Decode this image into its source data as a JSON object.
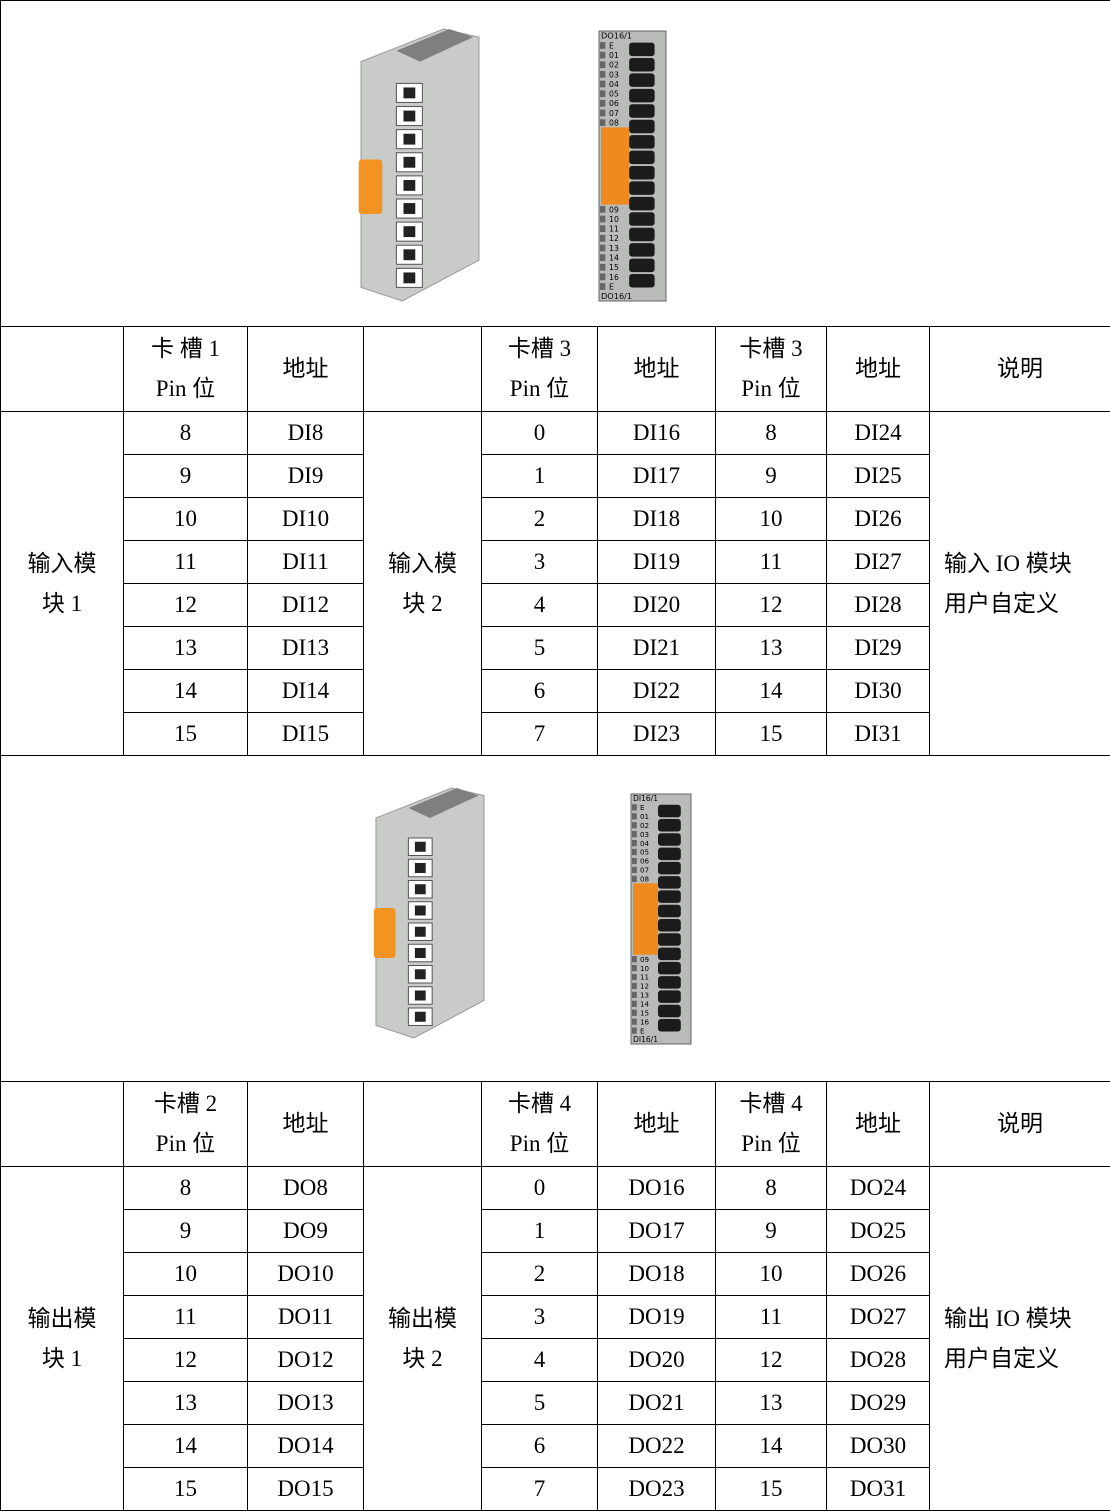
{
  "sections": [
    {
      "image": {
        "module_label": "DO16/1",
        "terminal_labels": [
          "E",
          "01",
          "02",
          "03",
          "04",
          "05",
          "06",
          "07",
          "08",
          "09",
          "10",
          "11",
          "12",
          "13",
          "14",
          "15",
          "16",
          "E"
        ]
      },
      "table": {
        "header": [
          [
            "卡 槽 1",
            "Pin 位"
          ],
          [
            "地址"
          ],
          [
            "卡槽 3",
            "Pin 位"
          ],
          [
            "地址"
          ],
          [
            "卡槽 3",
            "Pin 位"
          ],
          [
            "地址"
          ],
          [
            "说明"
          ]
        ],
        "module_1": [
          "输入模",
          "块 1"
        ],
        "module_2": [
          "输入模",
          "块 2"
        ],
        "note": [
          "输入 IO 模块",
          "用户自定义"
        ],
        "rows": [
          [
            8,
            "DI8",
            0,
            "DI16",
            8,
            "DI24"
          ],
          [
            9,
            "DI9",
            1,
            "DI17",
            9,
            "DI25"
          ],
          [
            10,
            "DI10",
            2,
            "DI18",
            10,
            "DI26"
          ],
          [
            11,
            "DI11",
            3,
            "DI19",
            11,
            "DI27"
          ],
          [
            12,
            "DI12",
            4,
            "DI20",
            12,
            "DI28"
          ],
          [
            13,
            "DI13",
            5,
            "DI21",
            13,
            "DI29"
          ],
          [
            14,
            "DI14",
            6,
            "DI22",
            14,
            "DI30"
          ],
          [
            15,
            "DI15",
            7,
            "DI23",
            15,
            "DI31"
          ]
        ]
      }
    },
    {
      "image": {
        "module_label": "DI16/1",
        "terminal_labels": [
          "E",
          "01",
          "02",
          "03",
          "04",
          "05",
          "06",
          "07",
          "08",
          "09",
          "10",
          "11",
          "12",
          "13",
          "14",
          "15",
          "16",
          "E"
        ]
      },
      "table": {
        "header": [
          [
            "卡槽 2",
            "Pin 位"
          ],
          [
            "地址"
          ],
          [
            "卡槽 4",
            "Pin 位"
          ],
          [
            "地址"
          ],
          [
            "卡槽 4",
            "Pin 位"
          ],
          [
            "地址"
          ],
          [
            "说明"
          ]
        ],
        "module_1": [
          "输出模",
          "块 1"
        ],
        "module_2": [
          "输出模",
          "块 2"
        ],
        "note": [
          "输出 IO 模块",
          "用户自定义"
        ],
        "rows": [
          [
            8,
            "DO8",
            0,
            "DO16",
            8,
            "DO24"
          ],
          [
            9,
            "DO9",
            1,
            "DO17",
            9,
            "DO25"
          ],
          [
            10,
            "DO10",
            2,
            "DO18",
            10,
            "DO26"
          ],
          [
            11,
            "DO11",
            3,
            "DO19",
            11,
            "DO27"
          ],
          [
            12,
            "DO12",
            4,
            "DO20",
            12,
            "DO28"
          ],
          [
            13,
            "DO13",
            5,
            "DO21",
            13,
            "DO29"
          ],
          [
            14,
            "DO14",
            6,
            "DO22",
            14,
            "DO30"
          ],
          [
            15,
            "DO15",
            7,
            "DO23",
            15,
            "DO31"
          ]
        ]
      }
    }
  ]
}
